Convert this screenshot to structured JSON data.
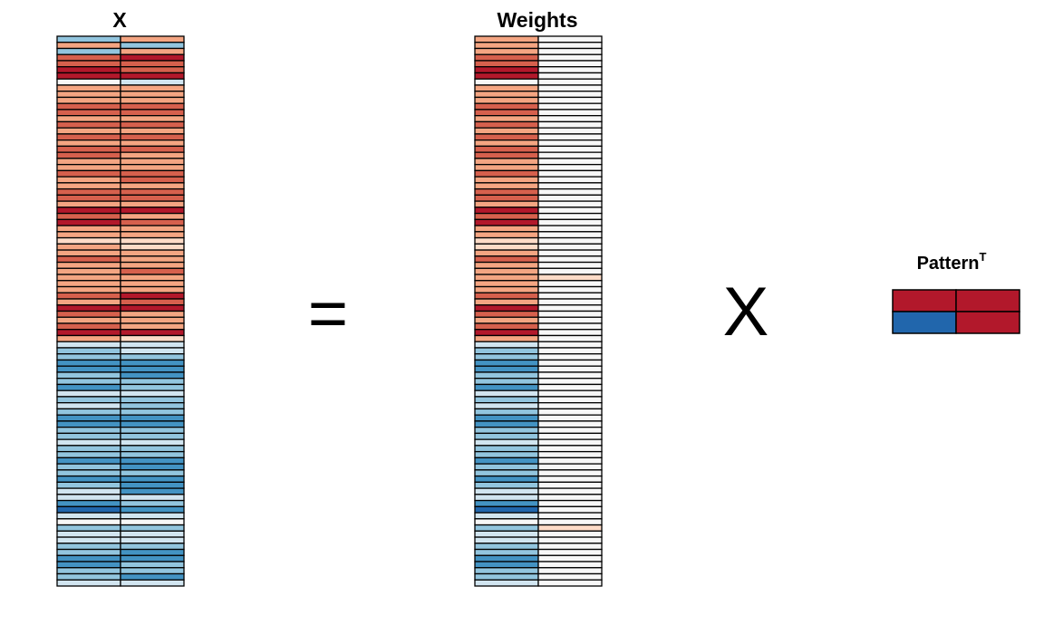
{
  "titles": {
    "x_matrix": "X",
    "weights_matrix": "Weights",
    "pattern_matrix": "Pattern",
    "pattern_superscript": "T"
  },
  "operators": {
    "equals": "=",
    "times": "X"
  },
  "colors": {
    "red_strong": "#b2182b",
    "red": "#d6604d",
    "red_light": "#f4a582",
    "red_pale": "#fddbc7",
    "white": "#f7f7f7",
    "blue_pale": "#d1e5f0",
    "blue_light": "#92c5de",
    "blue": "#4393c3",
    "blue_strong": "#2166ac",
    "grid_line": "#000000"
  },
  "x_matrix": {
    "rows": 90,
    "cols": 2,
    "col1_levels": [
      -2,
      2,
      -2,
      3,
      3,
      4,
      4,
      0,
      2,
      2,
      2,
      3,
      3,
      2,
      3,
      2,
      3,
      2,
      3,
      3,
      2,
      2,
      3,
      2,
      2,
      3,
      3,
      2,
      4,
      3,
      4,
      2,
      2,
      1,
      2,
      2,
      3,
      2,
      2,
      2,
      2,
      2,
      3,
      2,
      4,
      3,
      2,
      3,
      4,
      2,
      -1,
      -2,
      -2,
      -3,
      -3,
      -2,
      -2,
      -3,
      -1,
      -2,
      -1,
      -2,
      -3,
      -3,
      -2,
      -2,
      -1,
      -2,
      -2,
      -3,
      -2,
      -2,
      -3,
      -2,
      -1,
      -1,
      -3,
      -4,
      -1,
      0,
      -2,
      -1,
      -1,
      -2,
      -2,
      -3,
      -3,
      -2,
      -2,
      -1
    ],
    "col2_levels": [
      2,
      -2,
      2,
      4,
      3,
      3,
      4,
      -1,
      2,
      2,
      2,
      3,
      3,
      2,
      3,
      2,
      3,
      2,
      3,
      2,
      2,
      2,
      3,
      3,
      2,
      3,
      3,
      2,
      4,
      2,
      3,
      2,
      2,
      1,
      1,
      2,
      2,
      2,
      3,
      2,
      2,
      2,
      4,
      3,
      4,
      2,
      2,
      2,
      4,
      1,
      -1,
      -1,
      -2,
      -3,
      -3,
      -3,
      -2,
      -2,
      -1,
      -2,
      -2,
      -2,
      -3,
      -3,
      -2,
      -2,
      -1,
      -2,
      -2,
      -3,
      -3,
      -2,
      -3,
      -3,
      -3,
      -1,
      -2,
      -3,
      -1,
      0,
      -2,
      -1,
      -1,
      -2,
      -3,
      -3,
      -2,
      -2,
      -3,
      -1
    ]
  },
  "weights_matrix": {
    "rows": 90,
    "cols": 2,
    "col1_levels": [
      2,
      2,
      2,
      3,
      3,
      4,
      4,
      0,
      2,
      2,
      2,
      3,
      3,
      2,
      3,
      2,
      3,
      2,
      3,
      3,
      2,
      2,
      3,
      2,
      2,
      3,
      3,
      2,
      4,
      3,
      4,
      2,
      2,
      1,
      1,
      2,
      3,
      2,
      2,
      2,
      2,
      2,
      3,
      2,
      4,
      3,
      2,
      3,
      4,
      2,
      -1,
      -2,
      -2,
      -3,
      -3,
      -2,
      -2,
      -3,
      -1,
      -2,
      -1,
      -2,
      -3,
      -3,
      -2,
      -2,
      -1,
      -2,
      -2,
      -3,
      -2,
      -2,
      -3,
      -2,
      -1,
      -1,
      -3,
      -4,
      -1,
      0,
      -2,
      -1,
      -1,
      -2,
      -2,
      -3,
      -3,
      -2,
      -2,
      -1
    ],
    "col2_levels": [
      0,
      0,
      0,
      0,
      0,
      0,
      0,
      0,
      0,
      0,
      0,
      0,
      0,
      0,
      0,
      0,
      0,
      0,
      0,
      0,
      0,
      0,
      0,
      0,
      0,
      0,
      0,
      0,
      0,
      0,
      0,
      0,
      0,
      0,
      0,
      0,
      0,
      0,
      0,
      1,
      0,
      0,
      0,
      0,
      0,
      0,
      0,
      0,
      0,
      0,
      0,
      0,
      0,
      0,
      0,
      0,
      0,
      0,
      0,
      0,
      0,
      0,
      0,
      0,
      0,
      0,
      0,
      0,
      0,
      0,
      0,
      0,
      0,
      0,
      0,
      0,
      0,
      0,
      0,
      0,
      1,
      0,
      0,
      0,
      0,
      0,
      0,
      0,
      0,
      0
    ]
  },
  "pattern_matrix": {
    "rows": 2,
    "cols": 2,
    "levels": [
      [
        4,
        4
      ],
      [
        -4,
        4
      ]
    ]
  }
}
